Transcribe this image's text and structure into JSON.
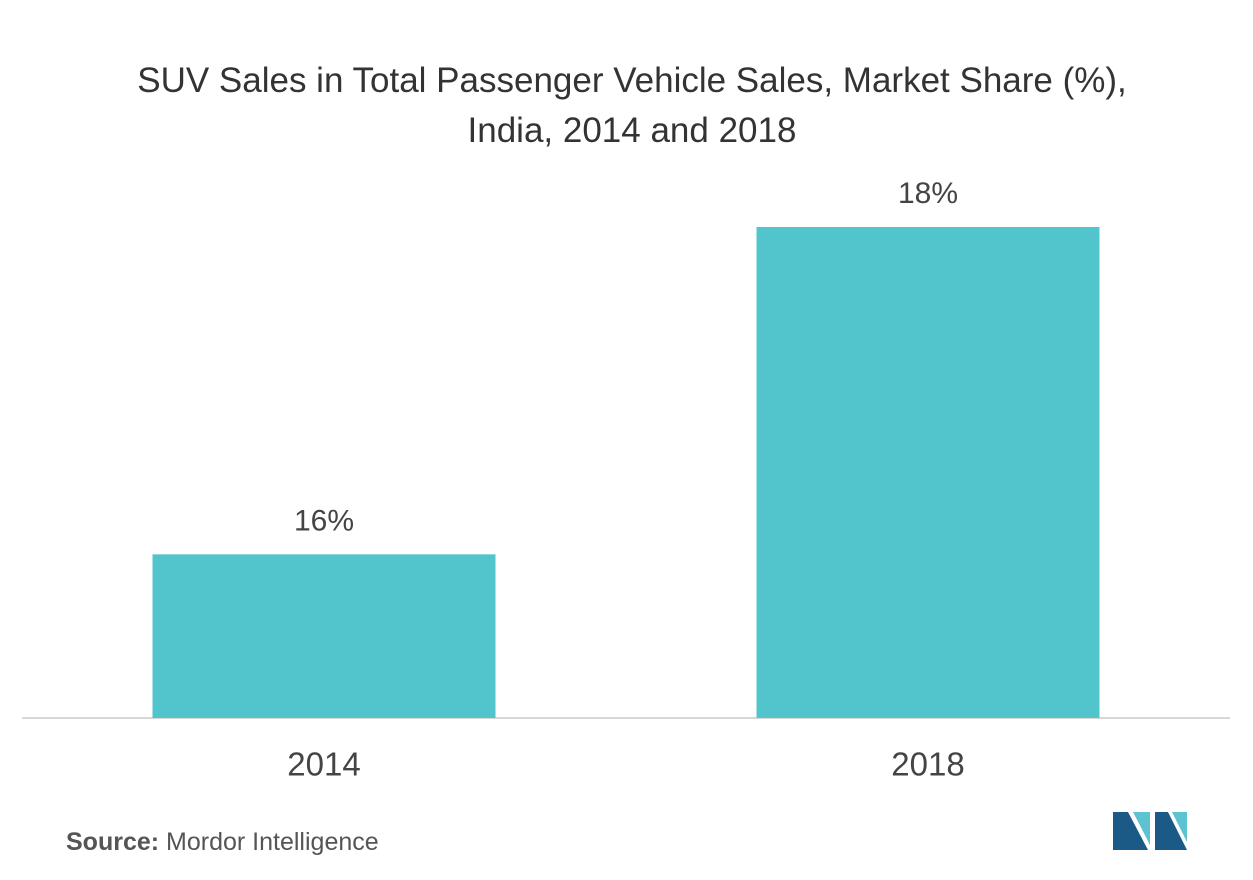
{
  "chart_data": {
    "type": "bar",
    "title": "SUV Sales in Total Passenger Vehicle Sales, Market Share (%), India, 2014 and 2018",
    "categories": [
      "2014",
      "2018"
    ],
    "values": [
      16,
      18
    ],
    "value_labels": [
      "16%",
      "18%"
    ],
    "color": "#52c4cb",
    "ylim": [
      15,
      18
    ],
    "source_label": "Source:",
    "source": "Mordor Intelligence"
  }
}
